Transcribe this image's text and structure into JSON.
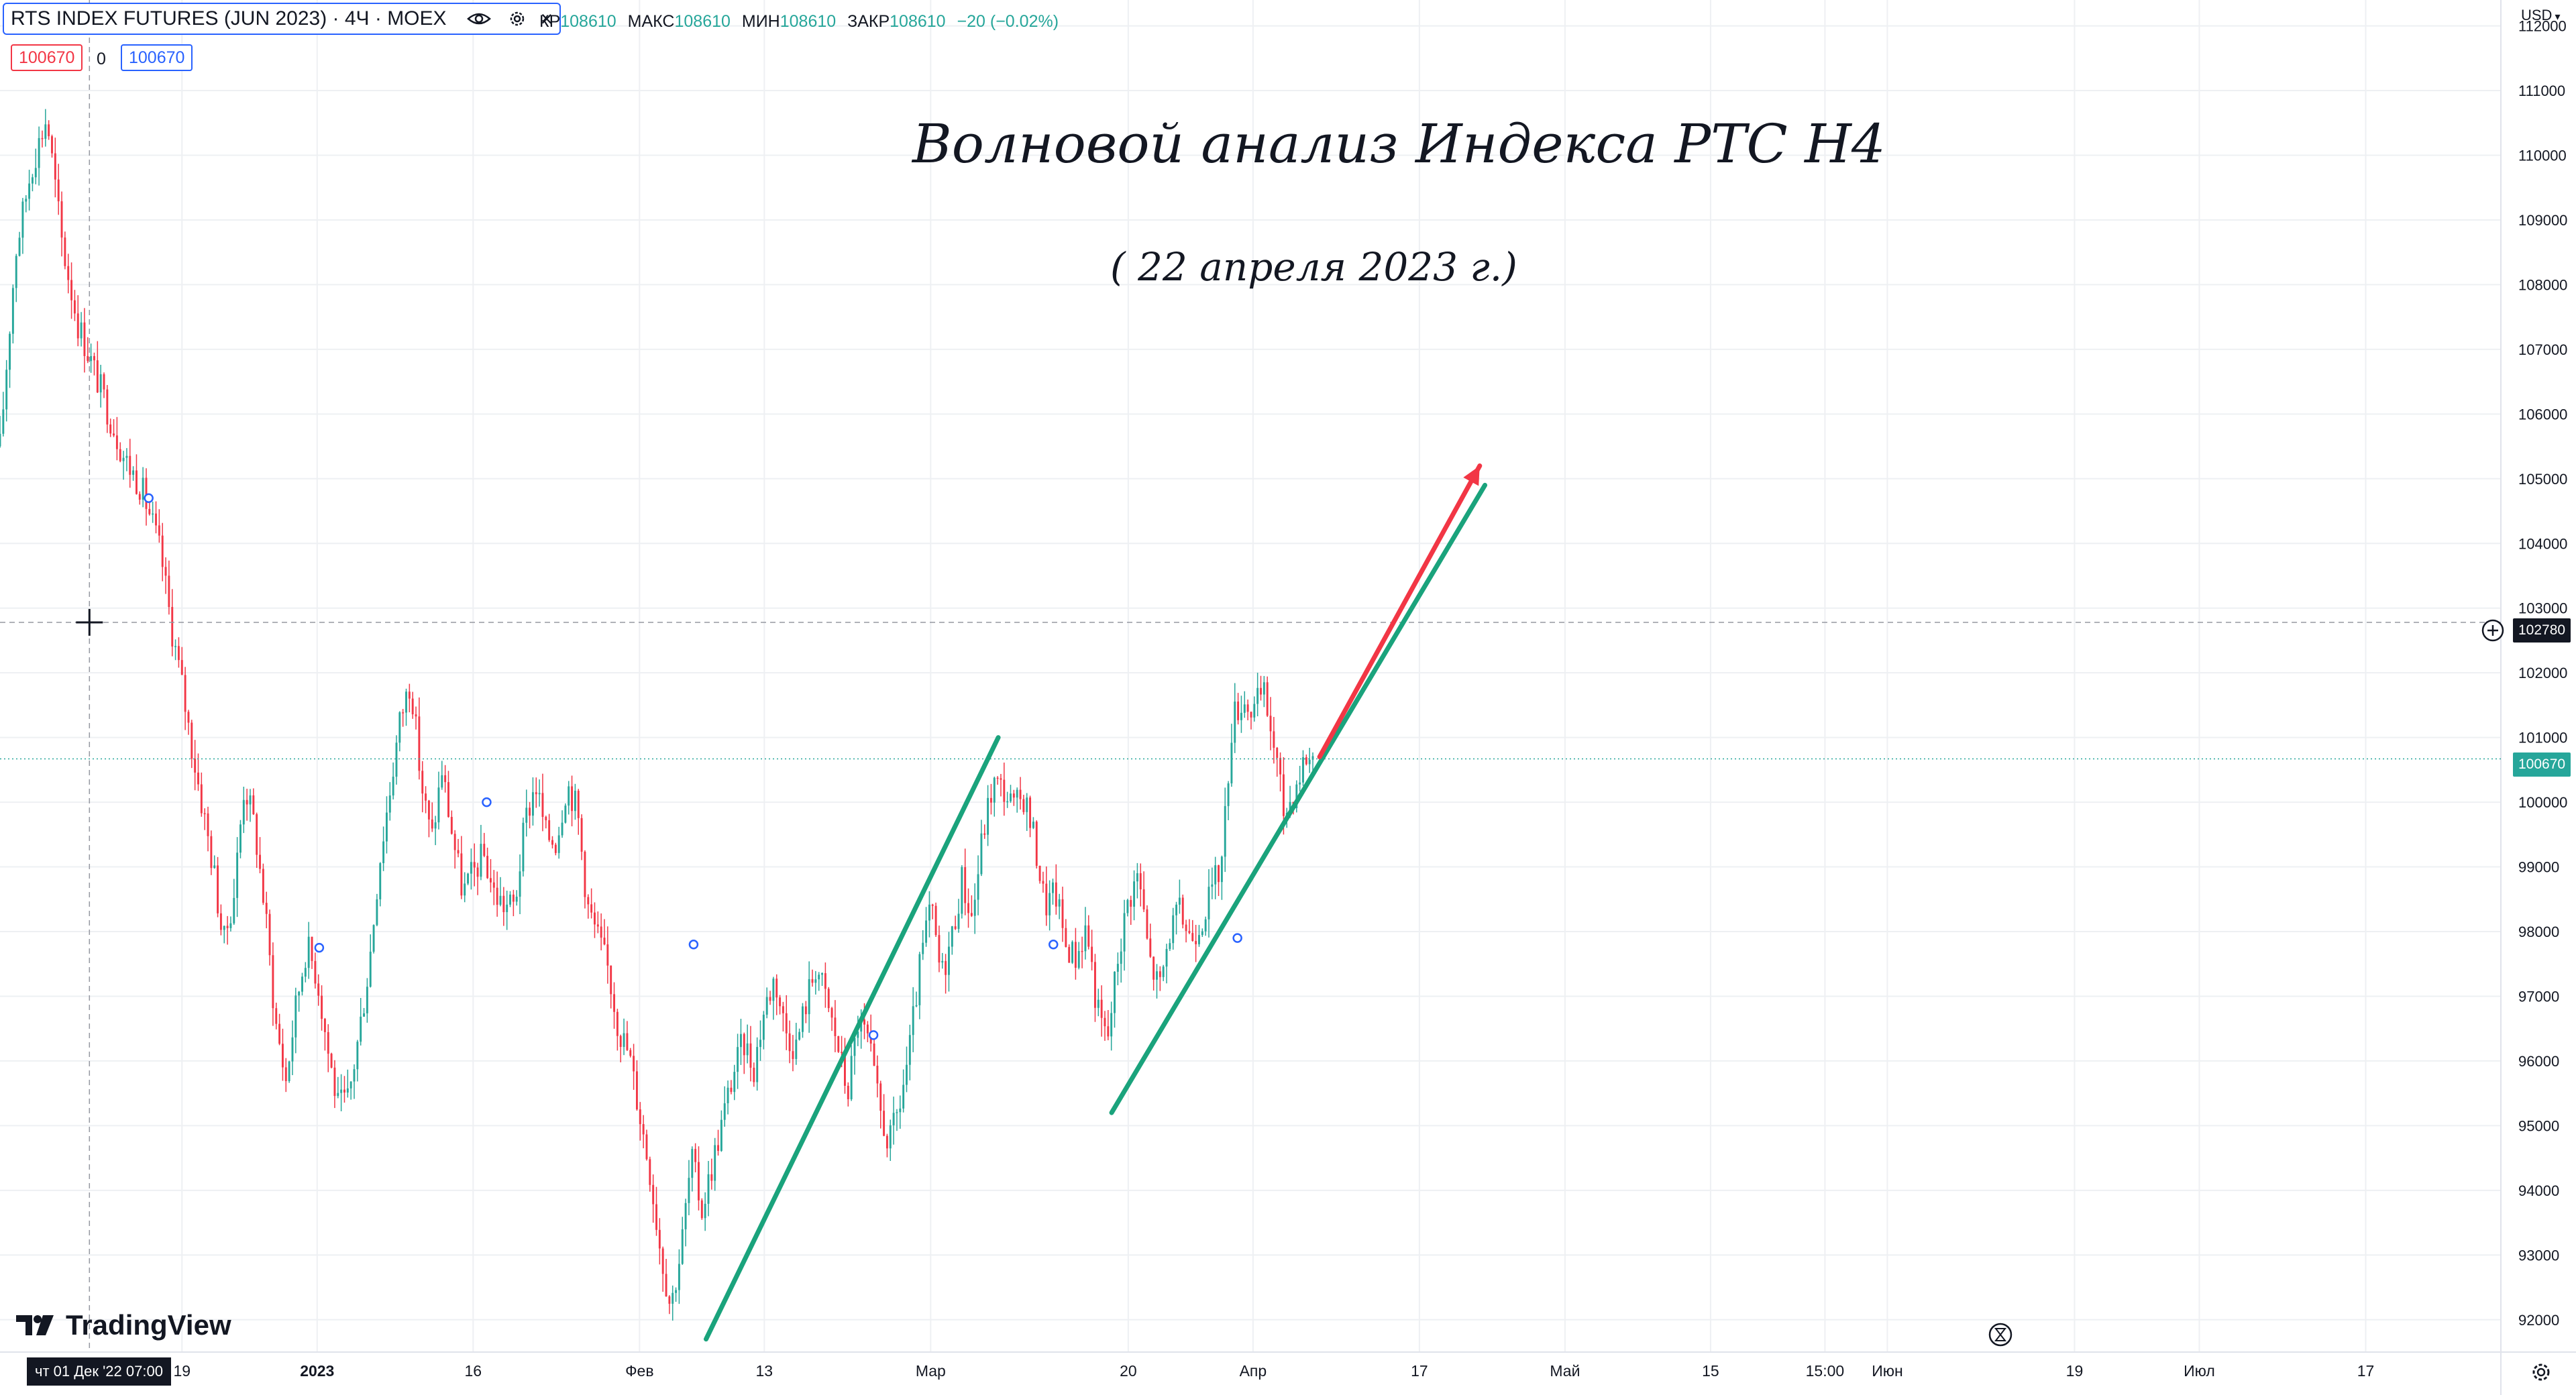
{
  "legend": {
    "symbol": "RTS INDEX FUTURES (JUN 2023) · 4Ч · MOEX",
    "labels": {
      "close_partial": "КР",
      "high": "МАКС",
      "low": "МИН",
      "close": "ЗАКР"
    },
    "values": {
      "close_partial": "108610",
      "high": "108610",
      "low": "108610",
      "close": "108610",
      "change": "−20 (−0.02%)"
    },
    "sell_price": "100670",
    "spread": "0",
    "buy_price": "100670",
    "icons": [
      "eye-icon",
      "gear-icon",
      "close-icon"
    ]
  },
  "annotations": {
    "title": "Волновой анализ Индекса РТС Н4",
    "subtitle": "( 22 апреля 2023 г.)"
  },
  "price_axis": {
    "currency": "USD",
    "crosshair_price": "102780",
    "last_price": "100670"
  },
  "time_axis": {
    "crosshair_label": "чт 01 Дек '22   07:00"
  },
  "brand": {
    "logo_text": "TradingView"
  },
  "colors": {
    "up": "#26a69a",
    "down": "#f23645",
    "channel": "#1aa37c",
    "arrow": "#f23645",
    "grid": "#eef0f3",
    "crosshair": "#9598a1",
    "last_price_line": "#26a69a"
  },
  "chart_data": {
    "type": "candlestick",
    "title": "Волновой анализ Индекса РТС Н4",
    "timeframe": "4Ч",
    "ylim": [
      91500,
      112400
    ],
    "y_ticks": [
      92000,
      93000,
      94000,
      95000,
      96000,
      97000,
      98000,
      99000,
      100000,
      101000,
      102000,
      103000,
      104000,
      105000,
      106000,
      107000,
      108000,
      109000,
      110000,
      111000,
      112000
    ],
    "y_tick_labels": [
      "92000",
      "93000",
      "94000",
      "95000",
      "96000",
      "97000",
      "98000",
      "99000",
      "100000",
      "101000",
      "102000",
      "103000",
      "104000",
      "105000",
      "106000",
      "107000",
      "108000",
      "109000",
      "110000",
      "111000",
      "112000"
    ],
    "x_ticks": [
      {
        "label": "19",
        "bold": false,
        "day": 18
      },
      {
        "label": "2023",
        "bold": true,
        "day": 31
      },
      {
        "label": "16",
        "bold": false,
        "day": 46
      },
      {
        "label": "Фев",
        "bold": false,
        "day": 62
      },
      {
        "label": "13",
        "bold": false,
        "day": 74
      },
      {
        "label": "Мар",
        "bold": false,
        "day": 90
      },
      {
        "label": "20",
        "bold": false,
        "day": 109
      },
      {
        "label": "Апр",
        "bold": false,
        "day": 121
      },
      {
        "label": "17",
        "bold": false,
        "day": 137
      },
      {
        "label": "Май",
        "bold": false,
        "day": 151
      },
      {
        "label": "15",
        "bold": false,
        "day": 165
      },
      {
        "label": "15:00",
        "bold": false,
        "day": 176
      },
      {
        "label": "Июн",
        "bold": false,
        "day": 182
      },
      {
        "label": "19",
        "bold": false,
        "day": 200
      },
      {
        "label": "Июл",
        "bold": false,
        "day": 212
      },
      {
        "label": "17",
        "bold": false,
        "day": 228
      }
    ],
    "x_range_days": [
      0.5,
      241
    ],
    "price_path": [
      [
        0.5,
        105500
      ],
      [
        2,
        108500
      ],
      [
        3.5,
        109800
      ],
      [
        5,
        110600
      ],
      [
        6.5,
        108600
      ],
      [
        8,
        107400
      ],
      [
        9.5,
        106700
      ],
      [
        11,
        106000
      ],
      [
        12.5,
        105300
      ],
      [
        14,
        104900
      ],
      [
        15,
        104400
      ],
      [
        16,
        103800
      ],
      [
        17,
        102700
      ],
      [
        18,
        101800
      ],
      [
        19,
        100800
      ],
      [
        20,
        99900
      ],
      [
        21,
        99000
      ],
      [
        22,
        97800
      ],
      [
        23,
        98600
      ],
      [
        24,
        100300
      ],
      [
        25,
        99600
      ],
      [
        26,
        98300
      ],
      [
        27,
        96600
      ],
      [
        28,
        95700
      ],
      [
        29,
        96900
      ],
      [
        30,
        97800
      ],
      [
        31,
        97300
      ],
      [
        32,
        96200
      ],
      [
        33,
        95300
      ],
      [
        34,
        95400
      ],
      [
        35,
        96400
      ],
      [
        36,
        97500
      ],
      [
        37,
        99100
      ],
      [
        38,
        100200
      ],
      [
        39,
        101300
      ],
      [
        40,
        101900
      ],
      [
        41,
        100300
      ],
      [
        42,
        99400
      ],
      [
        43,
        100500
      ],
      [
        44,
        99500
      ],
      [
        45,
        98600
      ],
      [
        46,
        98900
      ],
      [
        47,
        99200
      ],
      [
        48,
        98600
      ],
      [
        49,
        98400
      ],
      [
        50,
        98400
      ],
      [
        51,
        99700
      ],
      [
        52,
        100300
      ],
      [
        53,
        99500
      ],
      [
        54,
        99400
      ],
      [
        55,
        100300
      ],
      [
        56,
        99900
      ],
      [
        57,
        98400
      ],
      [
        58,
        97900
      ],
      [
        59,
        97400
      ],
      [
        60,
        96500
      ],
      [
        61,
        96100
      ],
      [
        62,
        95200
      ],
      [
        63,
        94300
      ],
      [
        64,
        93100
      ],
      [
        65,
        92200
      ],
      [
        66,
        93100
      ],
      [
        67,
        94500
      ],
      [
        68,
        93700
      ],
      [
        69,
        94400
      ],
      [
        70,
        95100
      ],
      [
        71,
        95800
      ],
      [
        72,
        96300
      ],
      [
        73,
        95900
      ],
      [
        74,
        96800
      ],
      [
        75,
        97300
      ],
      [
        76,
        96500
      ],
      [
        77,
        96200
      ],
      [
        78,
        96900
      ],
      [
        79,
        97500
      ],
      [
        80,
        96900
      ],
      [
        81,
        96300
      ],
      [
        82,
        95500
      ],
      [
        83,
        96600
      ],
      [
        84,
        96300
      ],
      [
        85,
        95300
      ],
      [
        86,
        94700
      ],
      [
        87,
        95300
      ],
      [
        88,
        96200
      ],
      [
        89,
        97500
      ],
      [
        90,
        98400
      ],
      [
        91,
        97300
      ],
      [
        92,
        97900
      ],
      [
        93,
        98800
      ],
      [
        94,
        98200
      ],
      [
        95,
        99500
      ],
      [
        96,
        100300
      ],
      [
        97,
        100200
      ],
      [
        98,
        99900
      ],
      [
        99,
        100100
      ],
      [
        100,
        99400
      ],
      [
        101,
        98400
      ],
      [
        102,
        98600
      ],
      [
        103,
        97800
      ],
      [
        104,
        97600
      ],
      [
        105,
        98100
      ],
      [
        106,
        96800
      ],
      [
        107,
        96300
      ],
      [
        108,
        97600
      ],
      [
        109,
        98500
      ],
      [
        110,
        98900
      ],
      [
        111,
        97600
      ],
      [
        112,
        97100
      ],
      [
        113,
        98000
      ],
      [
        114,
        98300
      ],
      [
        115,
        97900
      ],
      [
        116,
        98200
      ],
      [
        117,
        98600
      ],
      [
        118,
        99100
      ],
      [
        119,
        101300
      ],
      [
        120,
        101600
      ],
      [
        121,
        101400
      ],
      [
        122,
        101700
      ],
      [
        123,
        100900
      ],
      [
        124,
        99800
      ],
      [
        125,
        100200
      ],
      [
        126,
        100700
      ],
      [
        127,
        100670
      ]
    ],
    "markers": [
      {
        "day": 14.8,
        "price": 104700
      },
      {
        "day": 31.2,
        "price": 97750
      },
      {
        "day": 47.3,
        "price": 100000
      },
      {
        "day": 67.2,
        "price": 97800
      },
      {
        "day": 84.5,
        "price": 96400
      },
      {
        "day": 101.8,
        "price": 97800
      },
      {
        "day": 119.5,
        "price": 97900
      }
    ],
    "channel_lines": [
      {
        "from": [
          68.4,
          91700
        ],
        "to": [
          96.5,
          101000
        ]
      },
      {
        "from": [
          107.4,
          95200
        ],
        "to": [
          143.3,
          104900
        ]
      }
    ],
    "arrow": {
      "from": [
        127.4,
        100700
      ],
      "to": [
        142.8,
        105200
      ]
    },
    "crosshair": {
      "day": 9.1,
      "price": 102780
    },
    "last_price": 100670
  }
}
